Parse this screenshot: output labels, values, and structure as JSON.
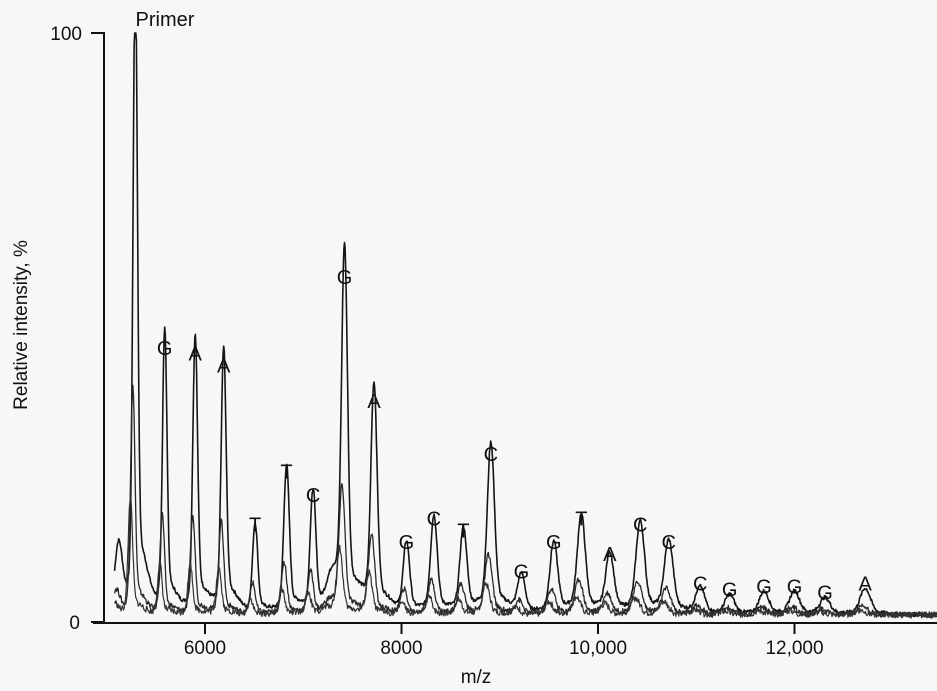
{
  "chart_data": {
    "type": "line",
    "xlabel": "m/z",
    "ylabel": "Relative intensity, %",
    "xlim": [
      4900,
      13600
    ],
    "ylim": [
      0,
      100
    ],
    "x_ticks": [
      6000,
      8000,
      10000,
      12000
    ],
    "x_tick_labels": [
      "6000",
      "8000",
      "10,000",
      "12,000"
    ],
    "y_ticks": [
      0,
      100
    ],
    "y_tick_labels": [
      "0",
      "100"
    ],
    "grid": false,
    "peaks": [
      {
        "label": "Primer",
        "x": 5290,
        "y": 100
      },
      {
        "label": "G",
        "x": 5590,
        "y": 44
      },
      {
        "label": "A",
        "x": 5900,
        "y": 43
      },
      {
        "label": "A",
        "x": 6190,
        "y": 41
      },
      {
        "label": "T",
        "x": 6510,
        "y": 14
      },
      {
        "label": "T",
        "x": 6830,
        "y": 23
      },
      {
        "label": "C",
        "x": 7100,
        "y": 19
      },
      {
        "label": "G",
        "x": 7420,
        "y": 56
      },
      {
        "label": "A",
        "x": 7720,
        "y": 35
      },
      {
        "label": "G",
        "x": 8050,
        "y": 11
      },
      {
        "label": "C",
        "x": 8330,
        "y": 15
      },
      {
        "label": "T",
        "x": 8630,
        "y": 13
      },
      {
        "label": "C",
        "x": 8910,
        "y": 26
      },
      {
        "label": "G",
        "x": 9220,
        "y": 6
      },
      {
        "label": "G",
        "x": 9550,
        "y": 11
      },
      {
        "label": "T",
        "x": 9830,
        "y": 15
      },
      {
        "label": "A",
        "x": 10120,
        "y": 9
      },
      {
        "label": "C",
        "x": 10430,
        "y": 14
      },
      {
        "label": "C",
        "x": 10720,
        "y": 11
      },
      {
        "label": "C",
        "x": 11040,
        "y": 4
      },
      {
        "label": "G",
        "x": 11340,
        "y": 3
      },
      {
        "label": "G",
        "x": 11690,
        "y": 3.5
      },
      {
        "label": "G",
        "x": 12000,
        "y": 3.5
      },
      {
        "label": "G",
        "x": 12310,
        "y": 2.5
      },
      {
        "label": "A",
        "x": 12720,
        "y": 4
      }
    ]
  }
}
